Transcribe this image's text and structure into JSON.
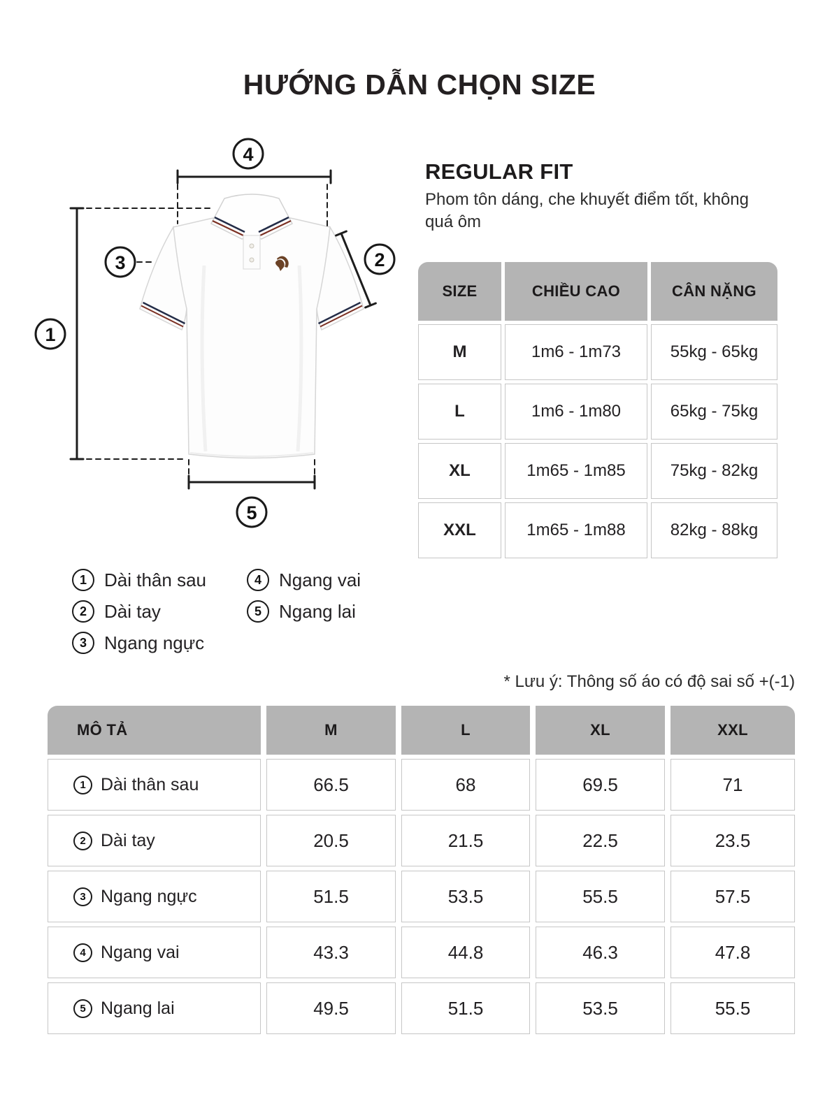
{
  "page": {
    "title": "HƯỚNG DẪN CHỌN SIZE"
  },
  "fit": {
    "heading": "REGULAR FIT",
    "description": "Phom tôn dáng, che khuyết điểm tốt, không quá ôm"
  },
  "diagram": {
    "product": "polo-shirt",
    "callouts": [
      "1",
      "2",
      "3",
      "4",
      "5"
    ]
  },
  "size_table": {
    "headers": [
      "SIZE",
      "CHIỀU CAO",
      "CÂN NẶNG"
    ],
    "rows": [
      [
        "M",
        "1m6 - 1m73",
        "55kg - 65kg"
      ],
      [
        "L",
        "1m6 - 1m80",
        "65kg - 75kg"
      ],
      [
        "XL",
        "1m65 - 1m85",
        "75kg - 82kg"
      ],
      [
        "XXL",
        "1m65 - 1m88",
        "82kg - 88kg"
      ]
    ]
  },
  "legend": {
    "items": [
      {
        "num": "1",
        "label": "Dài thân sau"
      },
      {
        "num": "2",
        "label": "Dài tay"
      },
      {
        "num": "3",
        "label": "Ngang ngực"
      },
      {
        "num": "4",
        "label": "Ngang vai"
      },
      {
        "num": "5",
        "label": "Ngang lai"
      }
    ]
  },
  "note": {
    "text": "* Lưu ý: Thông số áo có độ sai số  +(-1)"
  },
  "measure_table": {
    "headers": [
      "MÔ TẢ",
      "M",
      "L",
      "XL",
      "XXL"
    ],
    "rows": [
      {
        "num": "1",
        "label": "Dài thân sau",
        "values": [
          "66.5",
          "68",
          "69.5",
          "71"
        ]
      },
      {
        "num": "2",
        "label": "Dài tay",
        "values": [
          "20.5",
          "21.5",
          "22.5",
          "23.5"
        ]
      },
      {
        "num": "3",
        "label": "Ngang ngực",
        "values": [
          "51.5",
          "53.5",
          "55.5",
          "57.5"
        ]
      },
      {
        "num": "4",
        "label": "Ngang vai",
        "values": [
          "43.3",
          "44.8",
          "46.3",
          "47.8"
        ]
      },
      {
        "num": "5",
        "label": "Ngang lai",
        "values": [
          "49.5",
          "51.5",
          "53.5",
          "55.5"
        ]
      }
    ]
  },
  "colors": {
    "header_bg": "#b4b4b4",
    "cell_border": "#c6c6c6",
    "text": "#232123",
    "collar_navy": "#232c47",
    "tipping_red": "#7c3124",
    "logo_brown": "#6b4226"
  }
}
